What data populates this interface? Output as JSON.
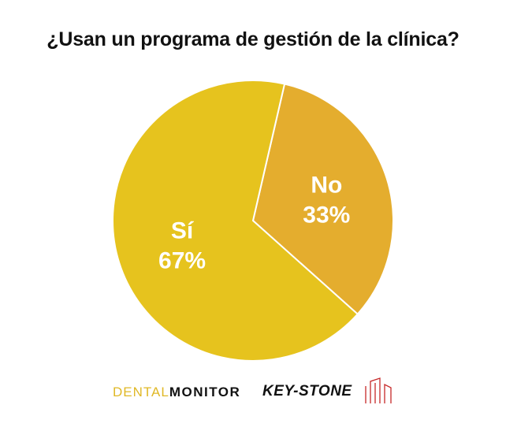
{
  "title": "¿Usan un programa de gestión de la clínica?",
  "chart_data": {
    "type": "pie",
    "title": "¿Usan un programa de gestión de la clínica?",
    "slices": [
      {
        "label": "Sí",
        "value": 67,
        "display": "67%",
        "color": "#e6c31e"
      },
      {
        "label": "No",
        "value": 33,
        "display": "33%",
        "color": "#e4ad2e"
      }
    ],
    "legend": "none"
  },
  "logos": {
    "dental_light": "DENTAL",
    "dental_bold": "MONITOR",
    "keystone": "KEY-STONE",
    "keystone_mark_color": "#c62828"
  }
}
